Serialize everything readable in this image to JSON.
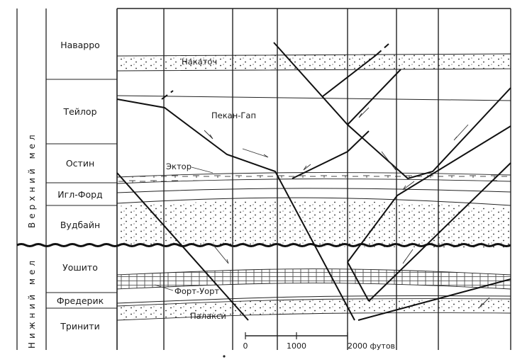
{
  "series": {
    "upper": "Верхний мел",
    "lower": "Нижний мел"
  },
  "units": {
    "navarro": "Наварро",
    "taylor": "Тейлор",
    "austin": "Остин",
    "eagle_ford": "Игл-Форд",
    "woodbine": "Вудбайн",
    "washita": "Уошито",
    "fredericksburg": "Фредерик",
    "trinity": "Тринити"
  },
  "markers": {
    "nacatoch": "Накаточ",
    "pecan_gap": "Пекан-Гап",
    "ector": "Эктор",
    "fort_worth": "Форт-Уорт",
    "paluxy": "Палакси"
  },
  "scale": {
    "ticks": [
      "0",
      "1000",
      "2000 футов"
    ]
  }
}
